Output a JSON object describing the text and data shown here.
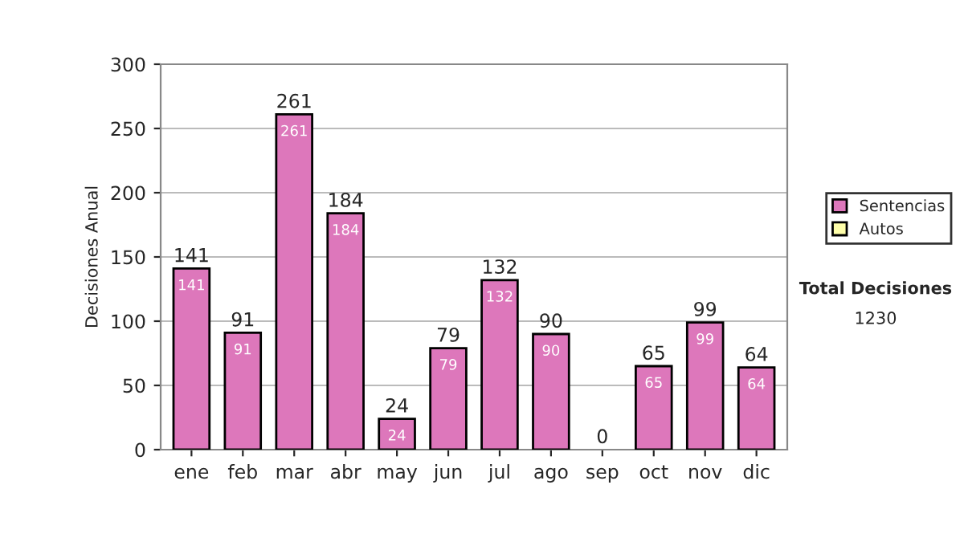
{
  "chart_data": {
    "type": "bar",
    "stacked": true,
    "ylabel": "Decisiones Anual",
    "categories": [
      "ene",
      "feb",
      "mar",
      "abr",
      "may",
      "jun",
      "jul",
      "ago",
      "sep",
      "oct",
      "nov",
      "dic"
    ],
    "series": [
      {
        "name": "Sentencias",
        "color": "#dd77bb",
        "values": [
          141,
          91,
          261,
          184,
          24,
          79,
          132,
          90,
          0,
          65,
          99,
          64
        ],
        "value_labels": [
          "141",
          "91",
          "261",
          "184",
          "24",
          "79",
          "132",
          "90",
          null,
          "65",
          "99",
          "64"
        ]
      },
      {
        "name": "Autos",
        "color": "#ffffaa",
        "values": [
          0,
          0,
          0,
          0,
          0,
          0,
          0,
          0,
          0,
          0,
          0,
          0
        ]
      }
    ],
    "totals": [
      "141",
      "91",
      "261",
      "184",
      "24",
      "79",
      "132",
      "90",
      "0",
      "65",
      "99",
      "64"
    ],
    "ylim": [
      0,
      300
    ],
    "yticks": [
      0,
      50,
      100,
      150,
      200,
      250,
      300
    ],
    "grid": "y",
    "legend": "right",
    "annotations": [
      "Total Decisiones",
      "1230"
    ]
  }
}
